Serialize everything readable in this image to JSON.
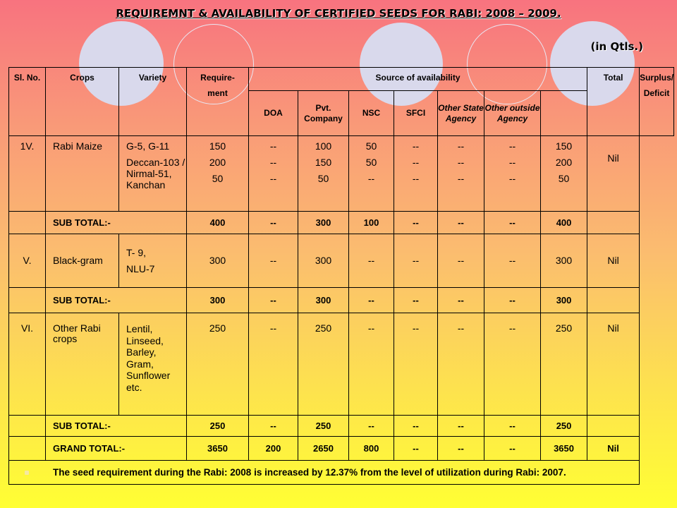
{
  "title": "REQUIREMNT & AVAILABILITY OF CERTIFIED SEEDS FOR RABI: 2008 – 2009.",
  "unit": "(in Qtls.)",
  "headers": {
    "sl_no": "Sl. No.",
    "crops": "Crops",
    "variety": "Variety",
    "requirement_1": "Require-",
    "requirement_2": "ment",
    "source": "Source of availability",
    "total": "Total",
    "surplus_1": "Surplus/",
    "surplus_2": "Deficit",
    "doa": "DOA",
    "pvt": "Pvt. Company",
    "nsc": "NSC",
    "sfci": "SFCI",
    "other_state": "Other State Agency",
    "other_outside": "Other outside Agency"
  },
  "rows": {
    "maize": {
      "sl": "1V.",
      "crop": "Rabi Maize",
      "variety_1": "G-5, G-11",
      "variety_2": "Deccan-103 / Nirmal-51, Kanchan",
      "requirement": [
        "150",
        "200",
        "50"
      ],
      "doa": [
        "--",
        "--",
        "--"
      ],
      "pvt": [
        "100",
        "150",
        "50"
      ],
      "nsc": [
        "50",
        "50",
        "--"
      ],
      "sfci": [
        "--",
        "--",
        "--"
      ],
      "other_state": [
        "--",
        "--",
        "--"
      ],
      "other_outside": [
        "--",
        "--",
        "--"
      ],
      "total": [
        "150",
        "200",
        "50"
      ],
      "surplus": "Nil"
    },
    "maize_sub": {
      "label": "SUB TOTAL:-",
      "requirement": "400",
      "doa": "--",
      "pvt": "300",
      "nsc": "100",
      "sfci": "--",
      "other_state": "--",
      "other_outside": "--",
      "total": "400"
    },
    "blackgram": {
      "sl": "V.",
      "crop": "Black-gram",
      "variety_1": "T- 9,",
      "variety_2": "NLU-7",
      "requirement": "300",
      "doa": "--",
      "pvt": "300",
      "nsc": "--",
      "sfci": "--",
      "other_state": "--",
      "other_outside": "--",
      "total": "300",
      "surplus": "Nil"
    },
    "blackgram_sub": {
      "label": "SUB TOTAL:-",
      "requirement": "300",
      "doa": "--",
      "pvt": "300",
      "nsc": "--",
      "sfci": "--",
      "other_state": "--",
      "other_outside": "--",
      "total": "300"
    },
    "other": {
      "sl": "VI.",
      "crop": "Other Rabi crops",
      "variety": "Lentil, Linseed, Barley, Gram, Sunflower etc.",
      "requirement": "250",
      "doa": "--",
      "pvt": "250",
      "nsc": "--",
      "sfci": "--",
      "other_state": "--",
      "other_outside": "--",
      "total": "250",
      "surplus": "Nil"
    },
    "other_sub": {
      "label": "SUB TOTAL:-",
      "requirement": "250",
      "doa": "--",
      "pvt": "250",
      "nsc": "--",
      "sfci": "--",
      "other_state": "--",
      "other_outside": "--",
      "total": "250"
    },
    "grand": {
      "label": "GRAND TOTAL:-",
      "requirement": "3650",
      "doa": "200",
      "pvt": "2650",
      "nsc": "800",
      "sfci": "--",
      "other_state": "--",
      "other_outside": "--",
      "total": "3650",
      "surplus": "Nil"
    }
  },
  "note": "The seed requirement during the Rabi: 2008 is increased by 12.37% from the level of utilization during Rabi: 2007.",
  "colors": {
    "background_top": "#f8737f",
    "background_bottom": "#ffff33",
    "circle": "#d9d9ec"
  }
}
